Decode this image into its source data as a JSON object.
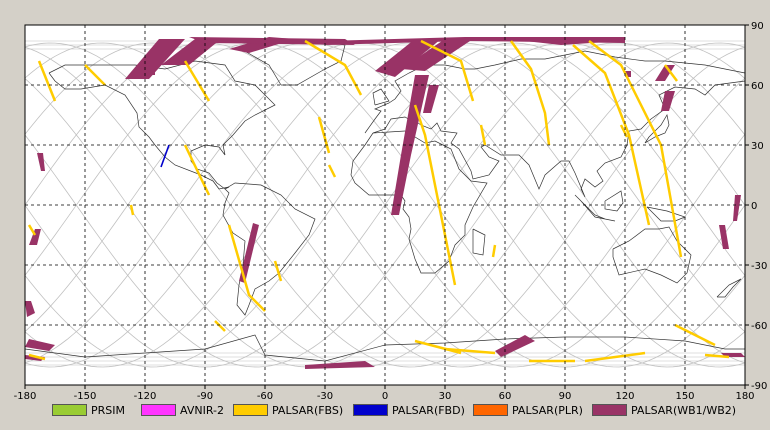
{
  "map": {
    "lon_range": [
      -180,
      180
    ],
    "lat_range": [
      -90,
      90
    ],
    "lon_ticks": [
      "-180",
      "-150",
      "-120",
      "-90",
      "-60",
      "-30",
      "0",
      "30",
      "60",
      "90",
      "120",
      "150",
      "180"
    ],
    "lat_ticks": [
      "90",
      "60",
      "30",
      "0",
      "-30",
      "-60",
      "-90"
    ],
    "grid_style": "dashed",
    "background": "#ffffff",
    "orbit_color": "#c0c0c0",
    "coast_color": "#333333"
  },
  "legend": [
    {
      "label": "PRSIM",
      "color": "#99cc33"
    },
    {
      "label": "AVNIR-2",
      "color": "#ff33ff"
    },
    {
      "label": "PALSAR(FBS)",
      "color": "#ffcc00"
    },
    {
      "label": "PALSAR(FBD)",
      "color": "#0000cc"
    },
    {
      "label": "PALSAR(PLR)",
      "color": "#ff6600"
    },
    {
      "label": "PALSAR(WB1/WB2)",
      "color": "#993366"
    }
  ],
  "coverage": {
    "wb": [
      [
        [
          -130,
          63
        ],
        [
          -113,
          83
        ],
        [
          -100,
          83
        ],
        [
          -118,
          63
        ]
      ],
      [
        [
          -112,
          70
        ],
        [
          -95,
          83
        ],
        [
          -82,
          83
        ],
        [
          -98,
          70
        ]
      ],
      [
        [
          -78,
          78
        ],
        [
          -58,
          84
        ],
        [
          -45,
          83
        ],
        [
          -68,
          76
        ]
      ],
      [
        [
          -98,
          84
        ],
        [
          -20,
          83
        ],
        [
          -15,
          80
        ],
        [
          -90,
          81
        ]
      ],
      [
        [
          -30,
          82
        ],
        [
          40,
          84
        ],
        [
          120,
          84
        ],
        [
          120,
          81
        ],
        [
          40,
          82
        ],
        [
          -30,
          80
        ]
      ],
      [
        [
          -5,
          67
        ],
        [
          15,
          83
        ],
        [
          28,
          83
        ],
        [
          5,
          64
        ]
      ],
      [
        [
          8,
          68
        ],
        [
          30,
          83
        ],
        [
          44,
          83
        ],
        [
          20,
          67
        ]
      ],
      [
        [
          15,
          65
        ],
        [
          8,
          25
        ],
        [
          3,
          -5
        ],
        [
          7,
          -5
        ],
        [
          13,
          25
        ],
        [
          22,
          65
        ]
      ],
      [
        [
          22,
          60
        ],
        [
          19,
          46
        ],
        [
          23,
          46
        ],
        [
          27,
          60
        ]
      ],
      [
        [
          70,
          82
        ],
        [
          100,
          83
        ],
        [
          118,
          82
        ],
        [
          88,
          80
        ]
      ],
      [
        [
          -122,
          67
        ],
        [
          -115,
          67
        ],
        [
          -115,
          65
        ],
        [
          -122,
          65
        ]
      ],
      [
        [
          135,
          62
        ],
        [
          140,
          70
        ],
        [
          145,
          70
        ],
        [
          140,
          62
        ]
      ],
      [
        [
          138,
          47
        ],
        [
          140,
          57
        ],
        [
          145,
          57
        ],
        [
          142,
          47
        ]
      ],
      [
        [
          120,
          67
        ],
        [
          123,
          67
        ],
        [
          123,
          64
        ],
        [
          120,
          64
        ]
      ],
      [
        [
          -178,
          -20
        ],
        [
          -174,
          -20
        ],
        [
          -172,
          -12
        ],
        [
          -175,
          -12
        ]
      ],
      [
        [
          -174,
          26
        ],
        [
          -171,
          26
        ],
        [
          -170,
          17
        ],
        [
          -172,
          17
        ]
      ],
      [
        [
          -63,
          -10
        ],
        [
          -70,
          -39
        ],
        [
          -73,
          -38
        ],
        [
          -66,
          -9
        ]
      ],
      [
        [
          -180,
          -48
        ],
        [
          -177,
          -48
        ],
        [
          -175,
          -54
        ],
        [
          -179,
          -56
        ]
      ],
      [
        [
          -178,
          -67
        ],
        [
          -165,
          -70
        ],
        [
          -168,
          -73
        ],
        [
          -180,
          -71
        ]
      ],
      [
        [
          -180,
          -75
        ],
        [
          -170,
          -76
        ],
        [
          -172,
          -78
        ],
        [
          -180,
          -77
        ]
      ],
      [
        [
          -40,
          -80
        ],
        [
          -10,
          -78
        ],
        [
          -5,
          -81
        ],
        [
          -40,
          -82
        ]
      ],
      [
        [
          55,
          -73
        ],
        [
          70,
          -65
        ],
        [
          75,
          -68
        ],
        [
          58,
          -76
        ]
      ],
      [
        [
          167,
          -10
        ],
        [
          170,
          -10
        ],
        [
          172,
          -22
        ],
        [
          169,
          -22
        ]
      ],
      [
        [
          174,
          -8
        ],
        [
          176,
          -8
        ],
        [
          178,
          5
        ],
        [
          175,
          5
        ]
      ],
      [
        [
          168,
          -74
        ],
        [
          178,
          -74
        ],
        [
          180,
          -76
        ],
        [
          170,
          -76
        ]
      ]
    ],
    "fbs": [
      [
        [
          -173,
          72
        ],
        [
          -165,
          52
        ]
      ],
      [
        [
          -150,
          70
        ],
        [
          -140,
          60
        ]
      ],
      [
        [
          -100,
          72
        ],
        [
          -88,
          52
        ]
      ],
      [
        [
          -40,
          82
        ],
        [
          -20,
          70
        ],
        [
          -12,
          55
        ]
      ],
      [
        [
          -78,
          -10
        ],
        [
          -68,
          -45
        ],
        [
          -60,
          -53
        ]
      ],
      [
        [
          -100,
          30
        ],
        [
          -88,
          5
        ]
      ],
      [
        [
          -127,
          0
        ],
        [
          -126,
          -5
        ]
      ],
      [
        [
          -33,
          44
        ],
        [
          -28,
          26
        ]
      ],
      [
        [
          -28,
          20
        ],
        [
          -25,
          14
        ]
      ],
      [
        [
          15,
          50
        ],
        [
          20,
          35
        ],
        [
          25,
          10
        ],
        [
          35,
          -40
        ]
      ],
      [
        [
          18,
          82
        ],
        [
          38,
          72
        ],
        [
          44,
          52
        ]
      ],
      [
        [
          48,
          40
        ],
        [
          50,
          30
        ]
      ],
      [
        [
          55,
          -20
        ],
        [
          54,
          -26
        ]
      ],
      [
        [
          63,
          82
        ],
        [
          73,
          68
        ],
        [
          80,
          46
        ],
        [
          82,
          30
        ]
      ],
      [
        [
          94,
          80
        ],
        [
          110,
          66
        ],
        [
          122,
          35
        ],
        [
          132,
          -10
        ]
      ],
      [
        [
          102,
          82
        ],
        [
          118,
          70
        ],
        [
          138,
          30
        ],
        [
          148,
          -26
        ]
      ],
      [
        [
          118,
          40
        ],
        [
          121,
          34
        ]
      ],
      [
        [
          140,
          70
        ],
        [
          146,
          62
        ]
      ],
      [
        [
          145,
          -60
        ],
        [
          165,
          -70
        ]
      ],
      [
        [
          100,
          -78
        ],
        [
          130,
          -74
        ]
      ],
      [
        [
          15,
          -68
        ],
        [
          38,
          -74
        ]
      ],
      [
        [
          30,
          -72
        ],
        [
          55,
          -74
        ]
      ],
      [
        [
          72,
          -78
        ],
        [
          95,
          -78
        ]
      ],
      [
        [
          -85,
          -58
        ],
        [
          -80,
          -63
        ]
      ],
      [
        [
          -178,
          -75
        ],
        [
          -170,
          -77
        ]
      ],
      [
        [
          -178,
          -10
        ],
        [
          -175,
          -15
        ]
      ],
      [
        [
          160,
          -75
        ],
        [
          172,
          -76
        ]
      ],
      [
        [
          -55,
          -28
        ],
        [
          -52,
          -38
        ]
      ]
    ],
    "fbd": [
      [
        [
          -108,
          30
        ],
        [
          -112,
          19
        ]
      ]
    ]
  }
}
